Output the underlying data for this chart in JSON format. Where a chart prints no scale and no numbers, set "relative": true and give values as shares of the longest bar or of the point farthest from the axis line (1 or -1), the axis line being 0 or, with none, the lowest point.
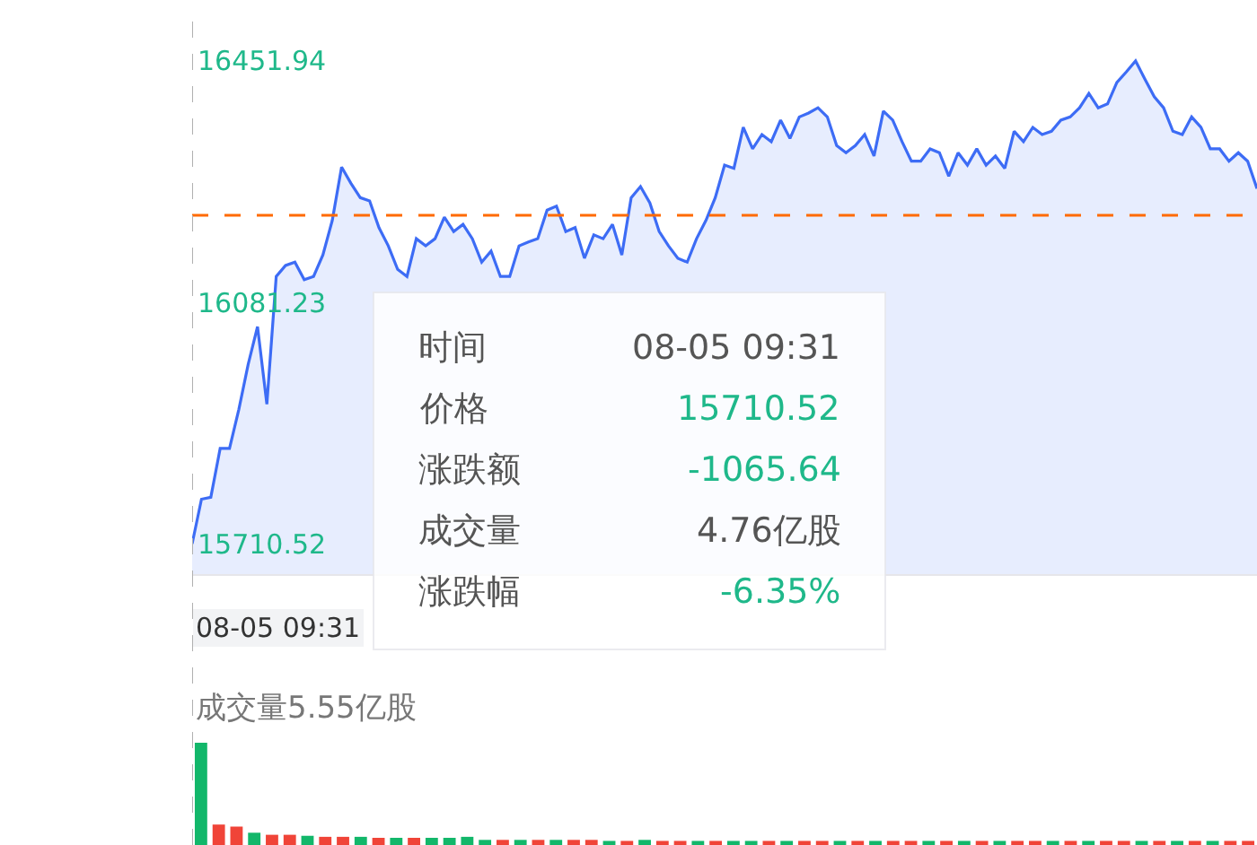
{
  "chart_data": [
    {
      "type": "area",
      "categories": [
        null,
        null,
        null,
        null,
        null,
        null,
        null,
        null,
        null,
        null,
        null,
        null,
        null,
        null,
        null,
        null,
        null,
        null,
        null,
        null,
        null,
        null,
        null,
        null,
        null,
        null,
        null,
        null,
        null,
        null,
        null,
        null,
        null,
        null,
        null,
        null,
        null,
        null,
        null,
        null,
        null,
        null,
        null,
        null,
        null,
        null,
        null,
        null,
        null,
        null,
        null,
        null,
        null,
        null,
        null,
        null,
        null,
        null,
        null,
        null,
        null,
        null,
        null,
        null,
        null,
        null,
        null,
        null,
        null,
        null,
        null,
        null,
        null,
        null,
        null,
        null,
        null,
        null,
        null,
        null,
        null,
        null,
        null,
        null,
        null,
        null,
        null,
        null,
        null,
        null,
        null,
        null,
        null,
        null,
        null,
        null,
        null,
        null,
        null,
        null,
        null,
        null,
        null,
        null,
        null,
        null,
        null,
        null,
        null,
        null,
        null,
        null,
        null,
        null,
        null
      ],
      "series": [
        {
          "color": "#3d6cf5",
          "values": [
            15710.52,
            15779,
            15782,
            15857,
            15857,
            15917,
            15986,
            16044,
            15925,
            16121,
            16138,
            16143,
            16116,
            16121,
            16154,
            16207,
            16289,
            16264,
            16242,
            16237,
            16196,
            16168,
            16132,
            16121,
            16179,
            16168,
            16179,
            16212,
            16190,
            16201,
            16179,
            16143,
            16160,
            16121,
            16121,
            16168,
            16174,
            16179,
            16223,
            16229,
            16190,
            16196,
            16149,
            16185,
            16179,
            16201,
            16154,
            16242,
            16259,
            16234,
            16190,
            16168,
            16149,
            16143,
            16179,
            16207,
            16242,
            16292,
            16287,
            16350,
            16317,
            16339,
            16328,
            16361,
            16333,
            16366,
            16372,
            16380,
            16366,
            16322,
            16311,
            16322,
            16339,
            16306,
            16375,
            16361,
            16328,
            16298,
            16298,
            16317,
            16311,
            16275,
            16311,
            16292,
            16317,
            16292,
            16306,
            16287,
            16344,
            16328,
            16350,
            16339,
            16344,
            16361,
            16366,
            16380,
            16402,
            16380,
            16386,
            16419,
            16435,
            16451.94,
            16424,
            16397,
            16380,
            16344,
            16339,
            16366,
            16350,
            16317,
            16317,
            16298,
            16311,
            16298,
            16256
          ]
        }
      ],
      "ylim": [
        15664,
        16518
      ],
      "yticks": [
        15710.52,
        16081.23,
        16451.94
      ],
      "tick_labels": "y",
      "ref_lines": [
        {
          "axis": "y",
          "value": 16215,
          "color": "#ff6a00",
          "line_style": "dashed"
        }
      ],
      "annotations": [
        "08-05 09:31",
        "时间",
        "08-05 09:31",
        "价格",
        "15710.52",
        "涨跌额",
        "-1065.64",
        "成交量",
        "4.76亿股",
        "涨跌幅",
        "-6.35%"
      ]
    },
    {
      "type": "bar",
      "title": "成交量5.55亿股",
      "relative": true,
      "tick_labels": false,
      "categories": [
        null,
        null,
        null,
        null,
        null,
        null,
        null,
        null,
        null,
        null,
        null,
        null,
        null,
        null,
        null,
        null,
        null,
        null,
        null,
        null,
        null,
        null,
        null,
        null,
        null,
        null,
        null,
        null,
        null,
        null,
        null,
        null,
        null,
        null,
        null,
        null,
        null,
        null,
        null,
        null,
        null,
        null,
        null,
        null,
        null,
        null,
        null,
        null,
        null,
        null,
        null,
        null,
        null,
        null,
        null,
        null,
        null,
        null,
        null,
        null
      ],
      "values": [
        1,
        0.2,
        0.18,
        0.12,
        0.1,
        0.1,
        0.09,
        0.08,
        0.08,
        0.08,
        0.07,
        0.07,
        0.07,
        0.07,
        0.07,
        0.08,
        0.05,
        0.05,
        0.05,
        0.05,
        0.05,
        0.05,
        0.05,
        0.04,
        0.04,
        0.05,
        0.04,
        0.04,
        0.04,
        0.04,
        0.04,
        0.04,
        0.04,
        0.04,
        0.04,
        0.04,
        0.04,
        0.04,
        0.04,
        0.04,
        0.04,
        0.04,
        0.04,
        0.04,
        0.04,
        0.04,
        0.04,
        0.04,
        0.04,
        0.04,
        0.04,
        0.04,
        0.04,
        0.04,
        0.04,
        0.04,
        0.04,
        0.04,
        0.04,
        0.04
      ],
      "colors": [
        "#12b76a",
        "#f04438",
        "#f04438",
        "#12b76a",
        "#f04438",
        "#f04438",
        "#12b76a",
        "#f04438",
        "#f04438",
        "#12b76a",
        "#f04438",
        "#12b76a",
        "#f04438",
        "#12b76a",
        "#12b76a",
        "#12b76a",
        "#12b76a",
        "#f04438",
        "#12b76a",
        "#f04438",
        "#12b76a",
        "#f04438",
        "#f04438",
        "#12b76a",
        "#f04438",
        "#12b76a",
        "#f04438",
        "#f04438",
        "#12b76a",
        "#f04438",
        "#12b76a",
        "#12b76a",
        "#f04438",
        "#12b76a",
        "#f04438",
        "#f04438",
        "#12b76a",
        "#f04438",
        "#12b76a",
        "#f04438",
        "#f04438",
        "#12b76a",
        "#f04438",
        "#12b76a",
        "#f04438",
        "#12b76a",
        "#f04438",
        "#f04438",
        "#12b76a",
        "#f04438",
        "#12b76a",
        "#f04438",
        "#f04438",
        "#12b76a",
        "#f04438",
        "#12b76a",
        "#f04438",
        "#12b76a",
        "#f04438",
        "#f04438"
      ]
    }
  ]
}
